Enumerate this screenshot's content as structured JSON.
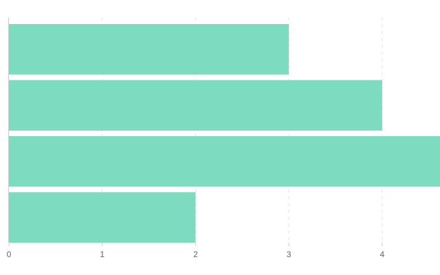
{
  "chart_data": {
    "type": "hbar",
    "categories": [
      null,
      null,
      null,
      null
    ],
    "values": [
      3,
      4,
      4.62,
      2
    ],
    "color": "#7ddcc0",
    "xlim": [
      0,
      4.62
    ],
    "xticks": [
      0,
      1,
      2,
      3,
      4
    ],
    "grid": true
  }
}
